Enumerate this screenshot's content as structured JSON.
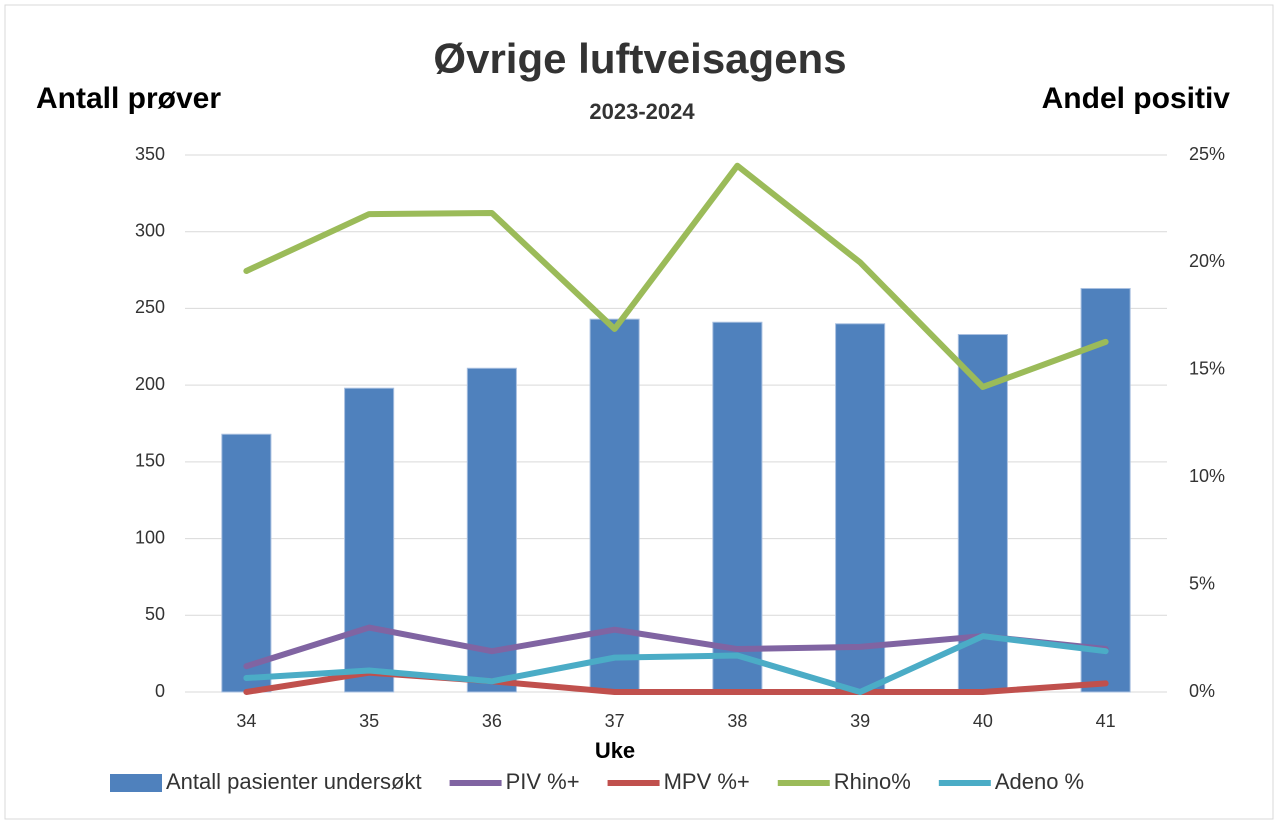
{
  "chart_data": {
    "type": "bar",
    "title": "Øvrige luftveisagens",
    "subtitle": "2023-2024",
    "ylabel": "Antall prøver",
    "y2label": "Andel positiv",
    "xlabel": "Uke",
    "categories": [
      "34",
      "35",
      "36",
      "37",
      "38",
      "39",
      "40",
      "41"
    ],
    "ylim": [
      0,
      350
    ],
    "yticks": [
      0,
      50,
      100,
      150,
      200,
      250,
      300,
      350
    ],
    "y2lim": [
      0,
      25
    ],
    "y2ticks": [
      {
        "value": 0,
        "label": "0%"
      },
      {
        "value": 5,
        "label": "5%"
      },
      {
        "value": 10,
        "label": "10%"
      },
      {
        "value": 15,
        "label": "15%"
      },
      {
        "value": 20,
        "label": "20%"
      },
      {
        "value": 25,
        "label": "25%"
      }
    ],
    "grid": true,
    "legend": "bottom",
    "series": [
      {
        "name": "Antall pasienter undersøkt",
        "type": "bar",
        "color": "#4f81bd",
        "values": [
          168,
          198,
          211,
          243,
          241,
          240,
          233,
          263
        ]
      },
      {
        "name": "PIV %+",
        "type": "line",
        "axis": "y2",
        "color": "#8064a2",
        "values": [
          1.2,
          3.0,
          1.9,
          2.9,
          2.0,
          2.1,
          2.6,
          2.0
        ]
      },
      {
        "name": "MPV %+",
        "type": "line",
        "axis": "y2",
        "color": "#c0504d",
        "values": [
          0,
          0.9,
          0.5,
          0,
          0,
          0,
          0,
          0.4
        ]
      },
      {
        "name": "Rhino%",
        "type": "line",
        "axis": "y2",
        "color": "#9bbb59",
        "values": [
          19.6,
          22.25,
          22.3,
          16.9,
          24.5,
          20.0,
          14.2,
          16.3
        ]
      },
      {
        "name": "Adeno %",
        "type": "line",
        "axis": "y2",
        "color": "#4bacc6",
        "values": [
          0.65,
          1.0,
          0.5,
          1.6,
          1.7,
          0,
          2.6,
          1.9
        ]
      }
    ]
  }
}
